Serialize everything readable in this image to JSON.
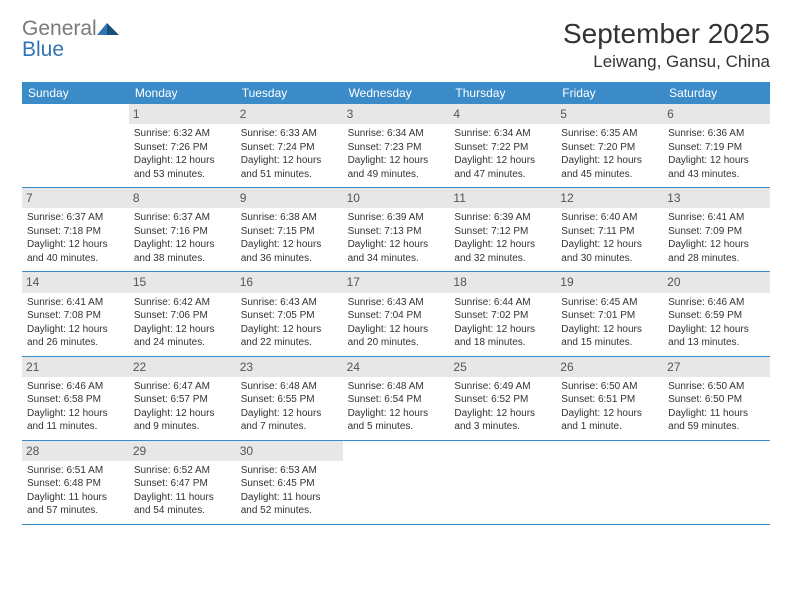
{
  "logo": {
    "word1": "General",
    "word2": "Blue"
  },
  "title": "September 2025",
  "location": "Leiwang, Gansu, China",
  "header_bg": "#3b8bc9",
  "dow": [
    "Sunday",
    "Monday",
    "Tuesday",
    "Wednesday",
    "Thursday",
    "Friday",
    "Saturday"
  ],
  "weeks": [
    [
      null,
      {
        "n": "1",
        "sr": "Sunrise: 6:32 AM",
        "ss": "Sunset: 7:26 PM",
        "dl": "Daylight: 12 hours and 53 minutes."
      },
      {
        "n": "2",
        "sr": "Sunrise: 6:33 AM",
        "ss": "Sunset: 7:24 PM",
        "dl": "Daylight: 12 hours and 51 minutes."
      },
      {
        "n": "3",
        "sr": "Sunrise: 6:34 AM",
        "ss": "Sunset: 7:23 PM",
        "dl": "Daylight: 12 hours and 49 minutes."
      },
      {
        "n": "4",
        "sr": "Sunrise: 6:34 AM",
        "ss": "Sunset: 7:22 PM",
        "dl": "Daylight: 12 hours and 47 minutes."
      },
      {
        "n": "5",
        "sr": "Sunrise: 6:35 AM",
        "ss": "Sunset: 7:20 PM",
        "dl": "Daylight: 12 hours and 45 minutes."
      },
      {
        "n": "6",
        "sr": "Sunrise: 6:36 AM",
        "ss": "Sunset: 7:19 PM",
        "dl": "Daylight: 12 hours and 43 minutes."
      }
    ],
    [
      {
        "n": "7",
        "sr": "Sunrise: 6:37 AM",
        "ss": "Sunset: 7:18 PM",
        "dl": "Daylight: 12 hours and 40 minutes."
      },
      {
        "n": "8",
        "sr": "Sunrise: 6:37 AM",
        "ss": "Sunset: 7:16 PM",
        "dl": "Daylight: 12 hours and 38 minutes."
      },
      {
        "n": "9",
        "sr": "Sunrise: 6:38 AM",
        "ss": "Sunset: 7:15 PM",
        "dl": "Daylight: 12 hours and 36 minutes."
      },
      {
        "n": "10",
        "sr": "Sunrise: 6:39 AM",
        "ss": "Sunset: 7:13 PM",
        "dl": "Daylight: 12 hours and 34 minutes."
      },
      {
        "n": "11",
        "sr": "Sunrise: 6:39 AM",
        "ss": "Sunset: 7:12 PM",
        "dl": "Daylight: 12 hours and 32 minutes."
      },
      {
        "n": "12",
        "sr": "Sunrise: 6:40 AM",
        "ss": "Sunset: 7:11 PM",
        "dl": "Daylight: 12 hours and 30 minutes."
      },
      {
        "n": "13",
        "sr": "Sunrise: 6:41 AM",
        "ss": "Sunset: 7:09 PM",
        "dl": "Daylight: 12 hours and 28 minutes."
      }
    ],
    [
      {
        "n": "14",
        "sr": "Sunrise: 6:41 AM",
        "ss": "Sunset: 7:08 PM",
        "dl": "Daylight: 12 hours and 26 minutes."
      },
      {
        "n": "15",
        "sr": "Sunrise: 6:42 AM",
        "ss": "Sunset: 7:06 PM",
        "dl": "Daylight: 12 hours and 24 minutes."
      },
      {
        "n": "16",
        "sr": "Sunrise: 6:43 AM",
        "ss": "Sunset: 7:05 PM",
        "dl": "Daylight: 12 hours and 22 minutes."
      },
      {
        "n": "17",
        "sr": "Sunrise: 6:43 AM",
        "ss": "Sunset: 7:04 PM",
        "dl": "Daylight: 12 hours and 20 minutes."
      },
      {
        "n": "18",
        "sr": "Sunrise: 6:44 AM",
        "ss": "Sunset: 7:02 PM",
        "dl": "Daylight: 12 hours and 18 minutes."
      },
      {
        "n": "19",
        "sr": "Sunrise: 6:45 AM",
        "ss": "Sunset: 7:01 PM",
        "dl": "Daylight: 12 hours and 15 minutes."
      },
      {
        "n": "20",
        "sr": "Sunrise: 6:46 AM",
        "ss": "Sunset: 6:59 PM",
        "dl": "Daylight: 12 hours and 13 minutes."
      }
    ],
    [
      {
        "n": "21",
        "sr": "Sunrise: 6:46 AM",
        "ss": "Sunset: 6:58 PM",
        "dl": "Daylight: 12 hours and 11 minutes."
      },
      {
        "n": "22",
        "sr": "Sunrise: 6:47 AM",
        "ss": "Sunset: 6:57 PM",
        "dl": "Daylight: 12 hours and 9 minutes."
      },
      {
        "n": "23",
        "sr": "Sunrise: 6:48 AM",
        "ss": "Sunset: 6:55 PM",
        "dl": "Daylight: 12 hours and 7 minutes."
      },
      {
        "n": "24",
        "sr": "Sunrise: 6:48 AM",
        "ss": "Sunset: 6:54 PM",
        "dl": "Daylight: 12 hours and 5 minutes."
      },
      {
        "n": "25",
        "sr": "Sunrise: 6:49 AM",
        "ss": "Sunset: 6:52 PM",
        "dl": "Daylight: 12 hours and 3 minutes."
      },
      {
        "n": "26",
        "sr": "Sunrise: 6:50 AM",
        "ss": "Sunset: 6:51 PM",
        "dl": "Daylight: 12 hours and 1 minute."
      },
      {
        "n": "27",
        "sr": "Sunrise: 6:50 AM",
        "ss": "Sunset: 6:50 PM",
        "dl": "Daylight: 11 hours and 59 minutes."
      }
    ],
    [
      {
        "n": "28",
        "sr": "Sunrise: 6:51 AM",
        "ss": "Sunset: 6:48 PM",
        "dl": "Daylight: 11 hours and 57 minutes."
      },
      {
        "n": "29",
        "sr": "Sunrise: 6:52 AM",
        "ss": "Sunset: 6:47 PM",
        "dl": "Daylight: 11 hours and 54 minutes."
      },
      {
        "n": "30",
        "sr": "Sunrise: 6:53 AM",
        "ss": "Sunset: 6:45 PM",
        "dl": "Daylight: 11 hours and 52 minutes."
      },
      null,
      null,
      null,
      null
    ]
  ]
}
